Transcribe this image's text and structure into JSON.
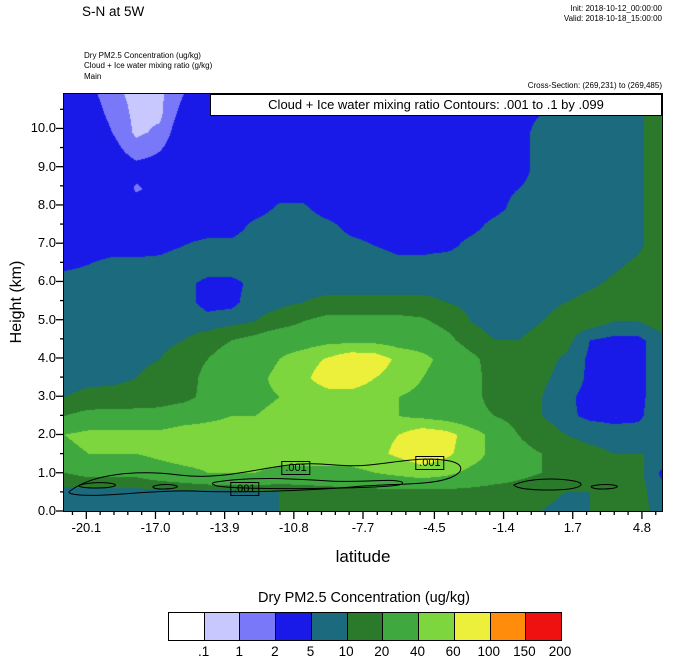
{
  "header": {
    "title": "S-N at 5W",
    "init": "Init: 2018-10-12_00:00:00",
    "valid": "Valid: 2018-10-18_15:00:00",
    "fields": [
      "Dry PM2.5 Concentration   (ug/kg)",
      "Cloud + Ice water mixing ratio   (g/kg)",
      "Main"
    ],
    "cross_section": "Cross-Section: (269,231) to (269,485)"
  },
  "plot": {
    "contour_title": "Cloud + Ice water mixing ratio Contours: .001 to .1 by .099",
    "xlabel": "latitude",
    "ylabel": "Height (km)"
  },
  "colorbar": {
    "title": "Dry PM2.5 Concentration  (ug/kg)",
    "labels": [
      ".1",
      "1",
      "2",
      "5",
      "10",
      "20",
      "40",
      "60",
      "100",
      "150",
      "200"
    ]
  },
  "chart_data": {
    "type": "filled_contour_cross_section",
    "title": "Cloud + Ice water mixing ratio Contours: .001 to .1 by .099",
    "xlabel": "latitude",
    "ylabel": "Height (km)",
    "x": {
      "ticks": [
        -20.1,
        -17.0,
        -13.9,
        -10.8,
        -7.7,
        -4.5,
        -1.4,
        1.7,
        4.8
      ],
      "range": [
        -21.1,
        5.7
      ]
    },
    "y": {
      "ticks": [
        0,
        1,
        2,
        3,
        4,
        5,
        6,
        7,
        8,
        9,
        10
      ],
      "range": [
        0,
        10.9
      ]
    },
    "fill_field": {
      "name": "Dry PM2.5 Concentration",
      "units": "ug/kg",
      "levels": [
        0.1,
        1,
        2,
        5,
        10,
        20,
        40,
        60,
        100,
        150,
        200
      ],
      "palette": [
        "#ffffff",
        "#c8c8ff",
        "#7878f8",
        "#1a1ae8",
        "#1b6a7e",
        "#2b7a2b",
        "#3fa83f",
        "#7ed63e",
        "#edf03a",
        "#ff8c0a",
        "#ef1010"
      ],
      "grid_lat_range": [
        -21.1,
        5.7
      ],
      "grid_height_range": [
        10.9,
        0
      ],
      "grid": [
        [
          3.5,
          2.5,
          1.2,
          0.8,
          0.8,
          2,
          3.5,
          3.5,
          3.5,
          3.5,
          3.5,
          3.5,
          3.5,
          3.5,
          3.5,
          3.5,
          3.5,
          3.5,
          3.5,
          4,
          5,
          6,
          7,
          7,
          9,
          13
        ],
        [
          3.5,
          3,
          1.5,
          0.8,
          0.8,
          2.5,
          3.5,
          3.5,
          3.5,
          3.5,
          3.5,
          3.5,
          3.5,
          3.5,
          3.5,
          3.5,
          3.5,
          3.5,
          3.5,
          4,
          5,
          7,
          7,
          7,
          9,
          13
        ],
        [
          3.5,
          3.5,
          2,
          0.8,
          1.2,
          3,
          3.5,
          3.5,
          3.5,
          3.5,
          3.5,
          3.5,
          3.5,
          3.5,
          3.5,
          3.5,
          3.5,
          3.5,
          3.5,
          4,
          6,
          7,
          7,
          7,
          9,
          13
        ],
        [
          3.5,
          3.5,
          2.5,
          1.5,
          2,
          3,
          3.5,
          3.5,
          3.5,
          3.5,
          3.5,
          3.5,
          3.5,
          3.5,
          3.5,
          3.5,
          3.5,
          3.5,
          3.5,
          4,
          6,
          7,
          7,
          7,
          9,
          13
        ],
        [
          3.5,
          3.5,
          3,
          2.5,
          2.5,
          3.5,
          3.5,
          3.5,
          3.5,
          3.5,
          3.5,
          3.5,
          3.5,
          3.5,
          3.5,
          3.5,
          3.5,
          3.5,
          3.5,
          4,
          6,
          7,
          7,
          7,
          9,
          13
        ],
        [
          3.5,
          3.5,
          3.5,
          1.8,
          2.5,
          3.5,
          3.5,
          3.5,
          3.5,
          3.5,
          3.5,
          3.5,
          3.5,
          3.5,
          3.5,
          3.5,
          3.5,
          3.5,
          4,
          5,
          6,
          7,
          7,
          7,
          9,
          13
        ],
        [
          3.5,
          3.5,
          3.5,
          3,
          3.5,
          3.5,
          3.5,
          3.5,
          3.5,
          5.5,
          5.5,
          3.5,
          3.5,
          3.5,
          3.5,
          3.5,
          3.5,
          3.5,
          4,
          6,
          7,
          7,
          7,
          7,
          9,
          13
        ],
        [
          3.5,
          3.5,
          3.5,
          3.5,
          3.5,
          3.5,
          3.5,
          3.5,
          6,
          7,
          7,
          6,
          4,
          3.5,
          3.5,
          3.5,
          3.5,
          4,
          6,
          7,
          7,
          7,
          7,
          7,
          9,
          13
        ],
        [
          3.5,
          3.5,
          3.5,
          3.5,
          4,
          5,
          6,
          6,
          7,
          7,
          7,
          7,
          6,
          5,
          4,
          4,
          4,
          6,
          7,
          7,
          7,
          7,
          7,
          7,
          9,
          13
        ],
        [
          4,
          5,
          6,
          6,
          6,
          7,
          7,
          7,
          7,
          7,
          7,
          7,
          7,
          7,
          6,
          6,
          7,
          7,
          7,
          7,
          7,
          7,
          7,
          9,
          11,
          13
        ],
        [
          7,
          7,
          7,
          7,
          7,
          6,
          4,
          4,
          6,
          7,
          7,
          7,
          7,
          7,
          7,
          7,
          7,
          7,
          7,
          7,
          7,
          7,
          9,
          11,
          13,
          13
        ],
        [
          7,
          7,
          7,
          7,
          7,
          6,
          4,
          4,
          7,
          8,
          10,
          12,
          12,
          12,
          12,
          12,
          10,
          8,
          7,
          7,
          8,
          10,
          12,
          13,
          13,
          13
        ],
        [
          7,
          7,
          7,
          7,
          7,
          7,
          6,
          7,
          10,
          14,
          20,
          24,
          24,
          24,
          24,
          22,
          16,
          10,
          7,
          7,
          10,
          13,
          13,
          10,
          10,
          13
        ],
        [
          7,
          7,
          7,
          7,
          8,
          10,
          14,
          20,
          24,
          30,
          30,
          34,
          34,
          34,
          30,
          30,
          24,
          14,
          10,
          10,
          13,
          12,
          5,
          3.5,
          3.5,
          8
        ],
        [
          7,
          7,
          7,
          8,
          10,
          14,
          20,
          28,
          30,
          40,
          50,
          62,
          75,
          72,
          55,
          45,
          34,
          24,
          14,
          13,
          12,
          9,
          4,
          3.2,
          3.5,
          8
        ],
        [
          7,
          8,
          8,
          10,
          13,
          14,
          24,
          30,
          35,
          45,
          55,
          72,
          75,
          60,
          50,
          40,
          30,
          24,
          16,
          13,
          11,
          8,
          4,
          3.2,
          3.5,
          8
        ],
        [
          10,
          12,
          13,
          14,
          14,
          16,
          24,
          30,
          35,
          40,
          45,
          50,
          50,
          45,
          40,
          35,
          30,
          24,
          16,
          13,
          10,
          6,
          3.5,
          3,
          3.5,
          8
        ],
        [
          20,
          24,
          24,
          24,
          25,
          30,
          35,
          40,
          40,
          45,
          50,
          50,
          45,
          45,
          40,
          35,
          30,
          24,
          20,
          14,
          10,
          6,
          4,
          3.5,
          4,
          8
        ],
        [
          40,
          45,
          45,
          45,
          45,
          50,
          50,
          50,
          50,
          50,
          50,
          50,
          50,
          55,
          60,
          74,
          68,
          50,
          34,
          20,
          14,
          10,
          8,
          7,
          7,
          8
        ],
        [
          35,
          40,
          40,
          40,
          45,
          50,
          50,
          50,
          50,
          50,
          50,
          50,
          50,
          55,
          64,
          74,
          64,
          50,
          34,
          24,
          20,
          14,
          12,
          10,
          10,
          10
        ],
        [
          20,
          24,
          24,
          24,
          30,
          34,
          40,
          40,
          40,
          35,
          35,
          35,
          35,
          40,
          45,
          50,
          45,
          35,
          30,
          24,
          20,
          14,
          14,
          12,
          12,
          4
        ],
        [
          7,
          7,
          7,
          7,
          7,
          8,
          8,
          8,
          10,
          10,
          12,
          14,
          16,
          16,
          16,
          16,
          16,
          16,
          14,
          14,
          12,
          10,
          10,
          12,
          12,
          7
        ],
        [
          7,
          7,
          7,
          7,
          7,
          7,
          8,
          8,
          8,
          10,
          12,
          14,
          16,
          16,
          16,
          16,
          16,
          14,
          14,
          12,
          10,
          8,
          10,
          12,
          12,
          8
        ]
      ]
    },
    "line_field": {
      "name": "Cloud + Ice water mixing ratio",
      "units": "g/kg",
      "contour_min": 0.001,
      "contour_max": 0.1,
      "contour_interval": 0.099,
      "labels": [
        {
          "text": ".001",
          "lat": -13.0,
          "height": 0.58
        },
        {
          "text": ".001",
          "lat": -10.7,
          "height": 1.12
        },
        {
          "text": ".001",
          "lat": -4.7,
          "height": 1.25
        }
      ]
    }
  }
}
